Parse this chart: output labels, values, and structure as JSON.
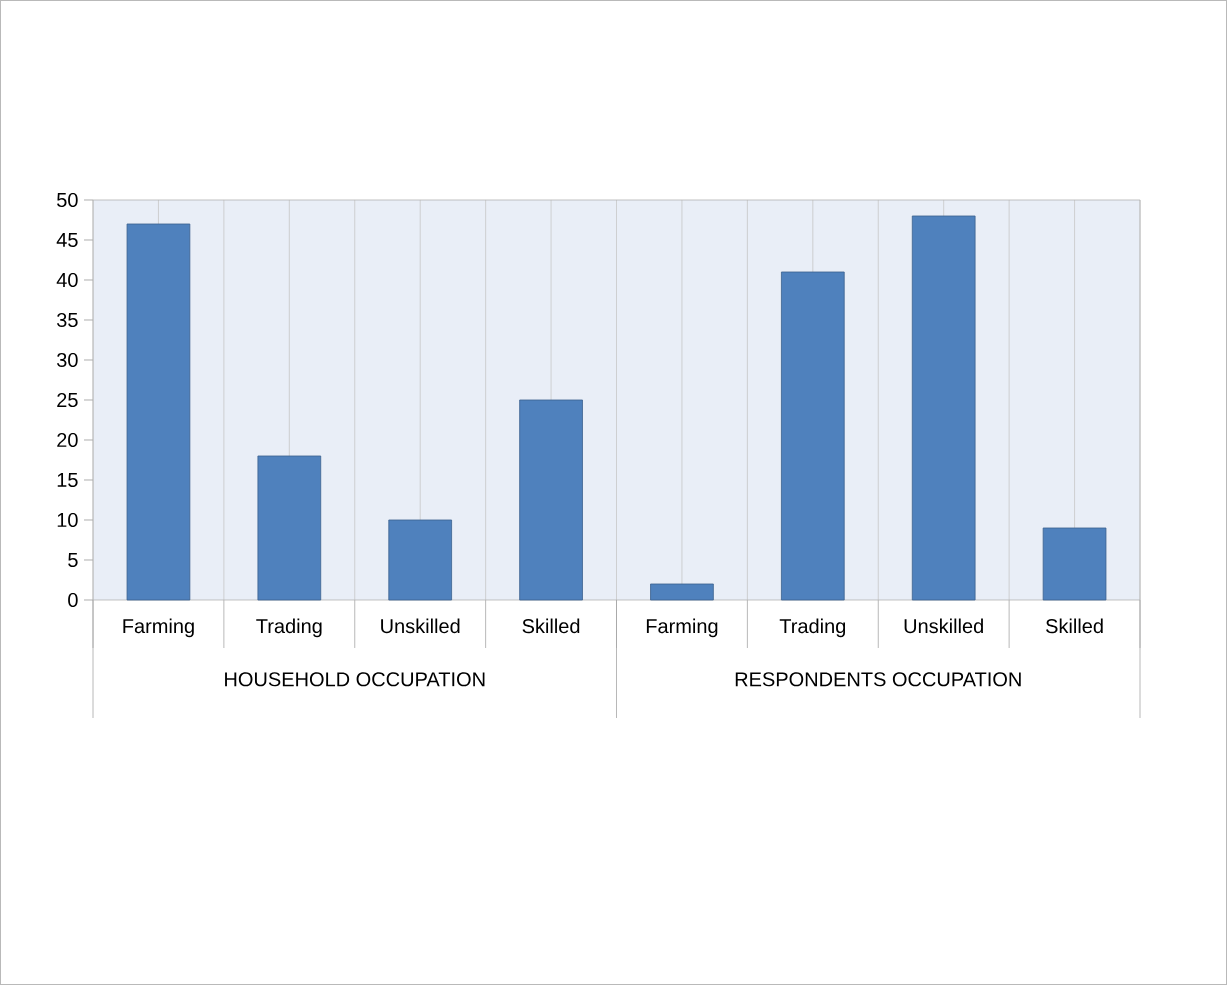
{
  "chart_data": {
    "type": "bar",
    "categories": [
      "Farming",
      "Trading",
      "Unskilled",
      "Skilled",
      "Farming",
      "Trading",
      "Unskilled",
      "Skilled"
    ],
    "values": [
      47,
      18,
      10,
      25,
      2,
      41,
      48,
      9
    ],
    "color": "#4f81bd",
    "ylim": [
      0,
      50
    ],
    "yticks": [
      0,
      5,
      10,
      15,
      20,
      25,
      30,
      35,
      40,
      45,
      50
    ],
    "grid": "x",
    "annotations": [
      "HOUSEHOLD OCCUPATION",
      "RESPONDENTS OCCUPATION"
    ]
  }
}
